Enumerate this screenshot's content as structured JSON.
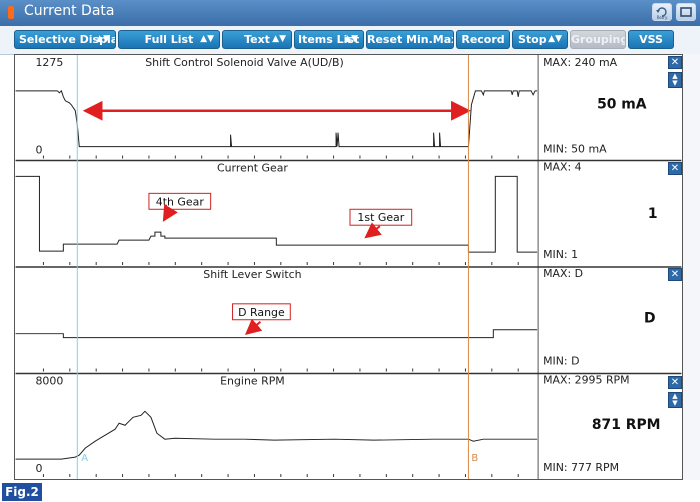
{
  "window": {
    "title": "Current Data",
    "retry_label": "Retry"
  },
  "toolbar": {
    "selective_display": "Selective Display",
    "full_list": "Full List",
    "text": "Text",
    "items_list": "Items List",
    "reset_min_max": "Reset Min.Max",
    "record": "Record",
    "stop": "Stop",
    "grouping": "Grouping",
    "vss": "VSS"
  },
  "panels": [
    {
      "title": "Shift Control Solenoid Valve A(UD/B)",
      "scale_max": "1275",
      "scale_min": "0",
      "max_label": "MAX:  240 mA",
      "min_label": "MIN:   50 mA",
      "current_value": "50 mA",
      "unit": "mA"
    },
    {
      "title": "Current Gear",
      "max_label": "MAX: 4",
      "min_label": "MIN: 1",
      "current_value": "1"
    },
    {
      "title": "Shift Lever Switch",
      "max_label": "MAX: D",
      "min_label": "MIN: D",
      "current_value": "D"
    },
    {
      "title": "Engine RPM",
      "scale_max": "8000",
      "scale_min": "0",
      "max_label": "MAX:  2995 RPM",
      "min_label": "MIN:   777 RPM",
      "current_value": "871 RPM",
      "unit": "RPM"
    }
  ],
  "annotations": {
    "gear_4th": "4th Gear",
    "gear_1st": "1st Gear",
    "d_range": "D Range"
  },
  "cursors": {
    "a_label": "A",
    "b_label": "B"
  },
  "figure_label": "Fig.2",
  "colors": {
    "cursor_a": "#7fd0e6",
    "cursor_b": "#d98a4a",
    "arrow": "#e02020",
    "accent": "#1a74b4"
  }
}
